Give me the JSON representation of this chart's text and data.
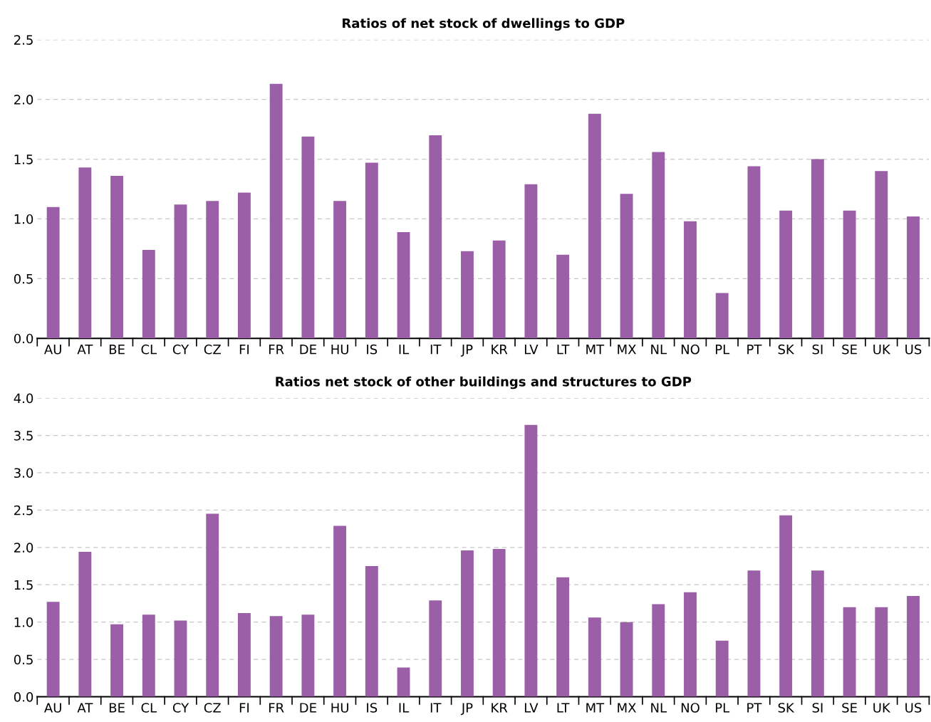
{
  "chart_data": [
    {
      "type": "bar",
      "title": "Ratios of net stock of dwellings to GDP",
      "categories": [
        "AU",
        "AT",
        "BE",
        "CL",
        "CY",
        "CZ",
        "FI",
        "FR",
        "DE",
        "HU",
        "IS",
        "IL",
        "IT",
        "JP",
        "KR",
        "LV",
        "LT",
        "MT",
        "MX",
        "NL",
        "NO",
        "PL",
        "PT",
        "SK",
        "SI",
        "SE",
        "UK",
        "US"
      ],
      "values": [
        1.1,
        1.43,
        1.36,
        0.74,
        1.12,
        1.15,
        1.22,
        2.13,
        1.69,
        1.15,
        1.47,
        0.89,
        1.7,
        0.73,
        0.82,
        1.29,
        0.7,
        1.88,
        1.21,
        1.56,
        0.98,
        0.38,
        1.44,
        1.07,
        1.5,
        1.07,
        1.4,
        1.02
      ],
      "color": "#9b5fa8",
      "ylim": [
        0,
        2.5
      ],
      "yticks": [
        {
          "value": 0,
          "label": "0.0"
        },
        {
          "value": 0.5,
          "label": "0.5"
        },
        {
          "value": 1,
          "label": "1.0"
        },
        {
          "value": 1.5,
          "label": "1.5"
        },
        {
          "value": 2,
          "label": "2.0"
        },
        {
          "value": 2.5,
          "label": "2.5"
        }
      ],
      "grid": "y",
      "legend": false
    },
    {
      "type": "bar",
      "title": "Ratios net stock of other buildings and structures to GDP",
      "categories": [
        "AU",
        "AT",
        "BE",
        "CL",
        "CY",
        "CZ",
        "FI",
        "FR",
        "DE",
        "HU",
        "IS",
        "IL",
        "IT",
        "JP",
        "KR",
        "LV",
        "LT",
        "MT",
        "MX",
        "NL",
        "NO",
        "PL",
        "PT",
        "SK",
        "SI",
        "SE",
        "UK",
        "US"
      ],
      "values": [
        1.27,
        1.94,
        0.97,
        1.1,
        1.02,
        2.45,
        1.12,
        1.08,
        1.1,
        2.29,
        1.75,
        0.39,
        1.29,
        1.96,
        1.98,
        3.64,
        1.6,
        1.06,
        1.0,
        1.24,
        1.4,
        0.75,
        1.69,
        2.43,
        1.69,
        1.2,
        1.2,
        1.35
      ],
      "color": "#9b5fa8",
      "ylim": [
        0,
        4.0
      ],
      "yticks": [
        {
          "value": 0,
          "label": "0.0"
        },
        {
          "value": 0.5,
          "label": "0.5"
        },
        {
          "value": 1,
          "label": "1.0"
        },
        {
          "value": 1.5,
          "label": "1.5"
        },
        {
          "value": 2,
          "label": "2.0"
        },
        {
          "value": 2.5,
          "label": "2.5"
        },
        {
          "value": 3,
          "label": "3.0"
        },
        {
          "value": 3.5,
          "label": "3.5"
        },
        {
          "value": 4,
          "label": "4.0"
        }
      ],
      "grid": "y",
      "legend": false
    }
  ]
}
